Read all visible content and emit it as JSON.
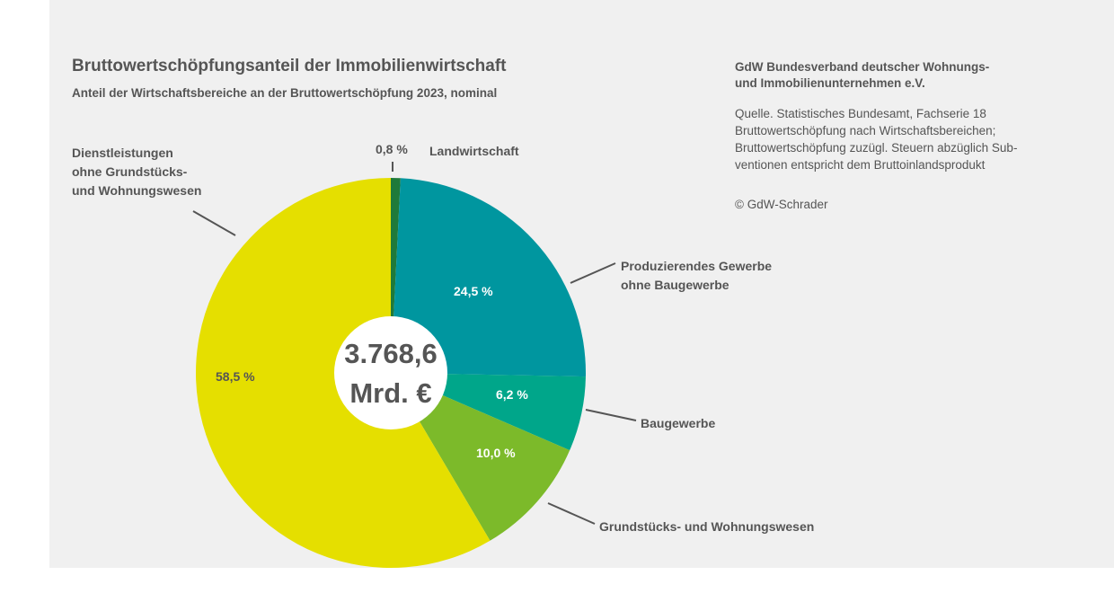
{
  "chart_data": {
    "type": "pie",
    "title": "Bruttowertschöpfungsanteil der Immobilienwirtschaft",
    "subtitle": "Anteil der Wirtschaftsbereiche an der Bruttowertschöpfung 2023, nominal",
    "categories": [
      "Landwirtschaft",
      "Produzierendes Gewerbe\nohne Baugewerbe",
      "Baugewerbe",
      "Grundstücks- und Wohnungswesen",
      "Dienstleistungen\nohne Grundstücks-\nund Wohnungswesen"
    ],
    "values": [
      0.8,
      24.5,
      6.2,
      10.0,
      58.5
    ],
    "value_labels": [
      "0,8 %",
      "24,5 %",
      "6,2 %",
      "10,0 %",
      "58,5 %"
    ],
    "colors": [
      "#1f7a3a",
      "#00969f",
      "#00a68a",
      "#7cba2a",
      "#e5df00"
    ],
    "center_label": [
      "3.768,6",
      "Mrd. €"
    ],
    "source_title": "GdW Bundesverband deutscher Wohnungs-\nund Immobilienunternehmen e.V.",
    "source": "Quelle. Statistisches Bundesamt, Fachserie 18\nBruttowertschöpfung nach Wirtschaftsbereichen;\nBruttowertschöpfung zuzügl. Steuern abzüglich Sub-\nventionen entspricht dem Bruttoinlandsprodukt",
    "copyright": "© GdW-Schrader"
  }
}
